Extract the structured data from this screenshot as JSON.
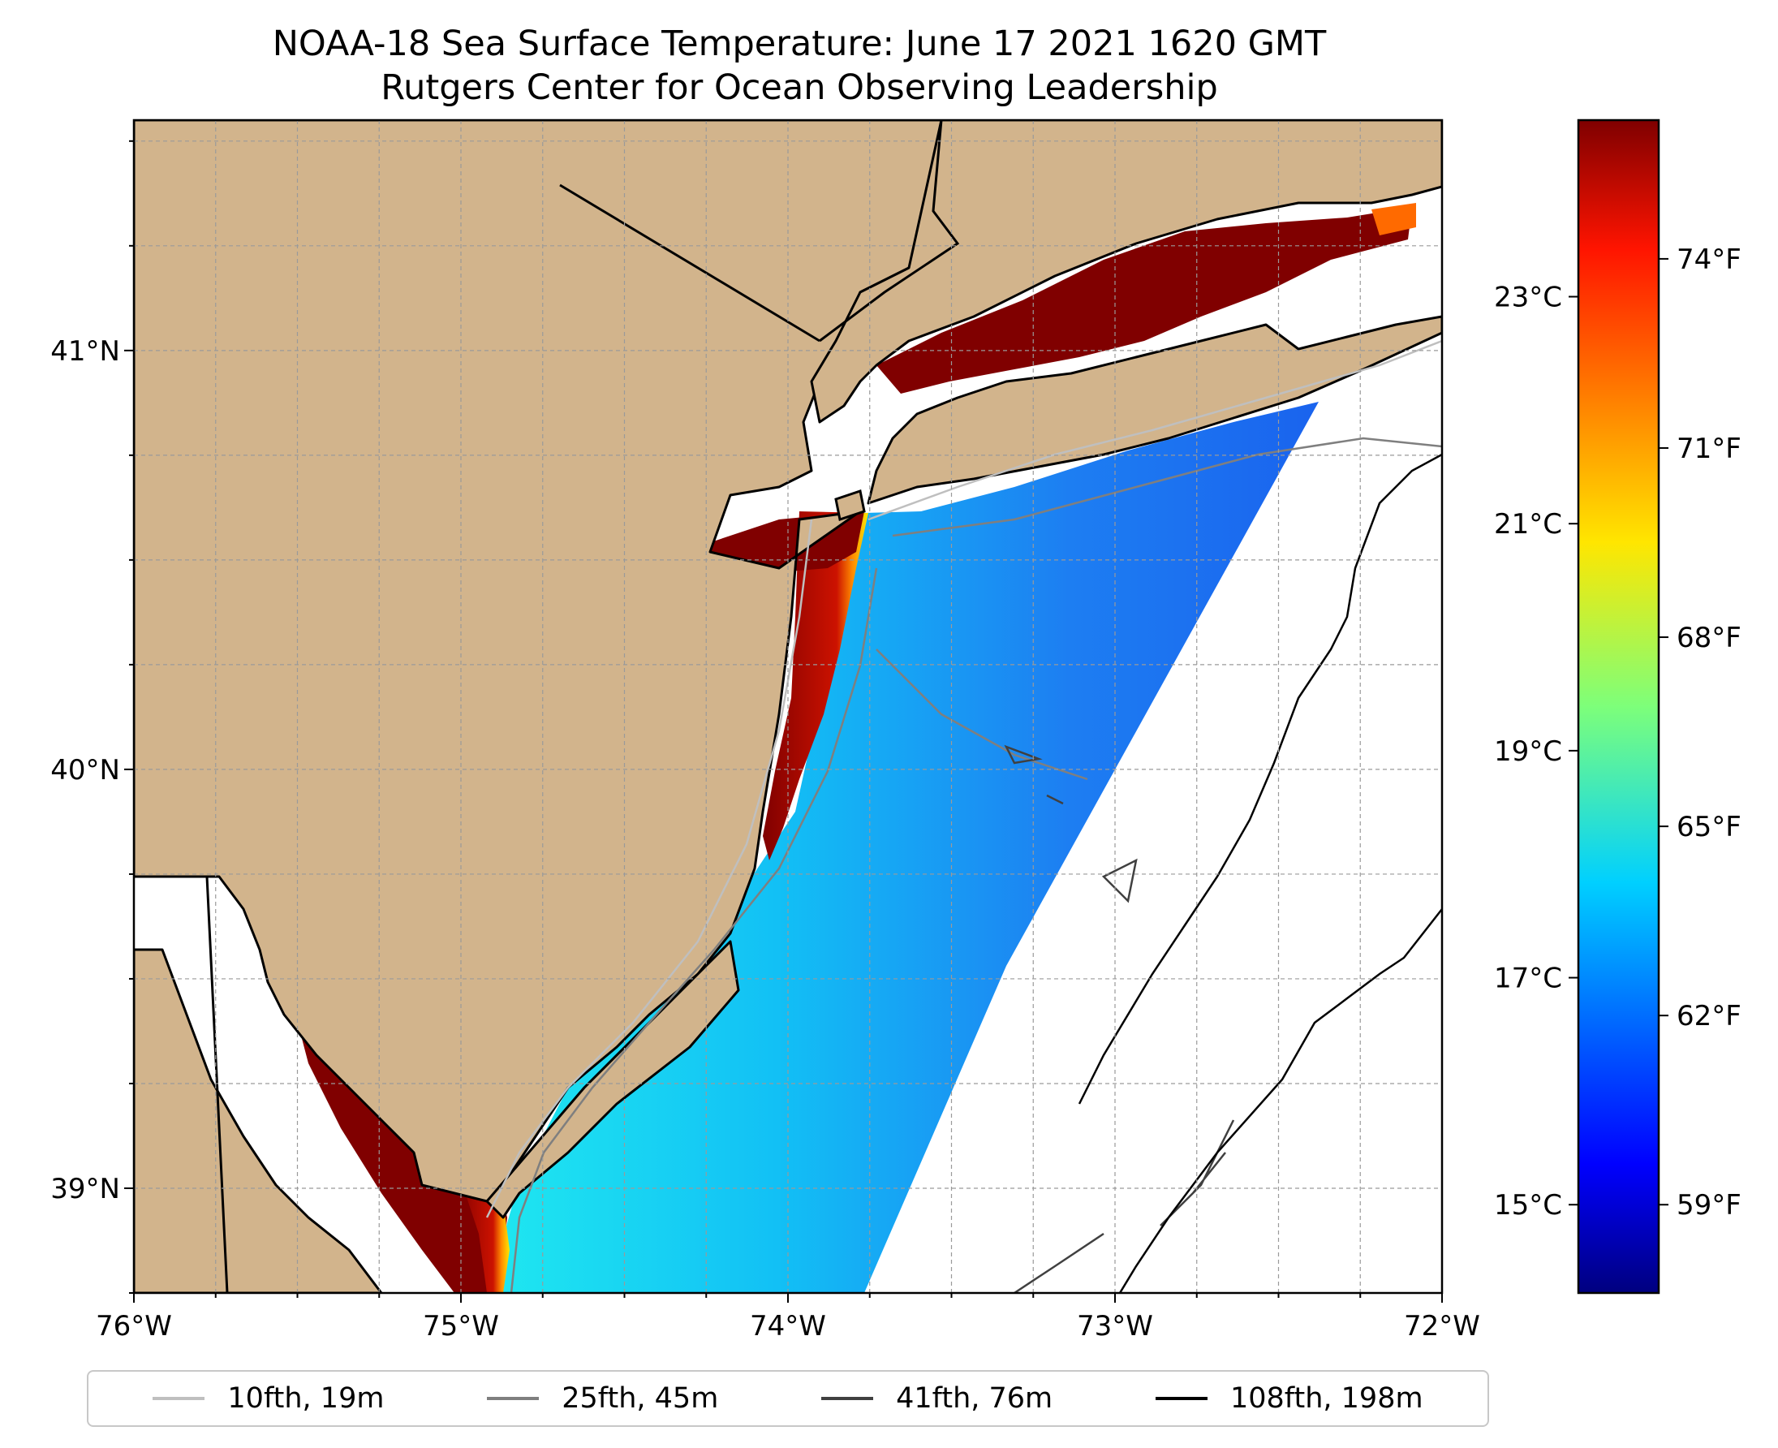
{
  "title": "NOAA-18 Sea Surface Temperature: June 17 2021 1620 GMT",
  "subtitle": "Rutgers Center for Ocean Observing Leadership",
  "map": {
    "lon_range": [
      -76,
      -72
    ],
    "lat_range": [
      38.75,
      41.55
    ],
    "lon_ticks": [
      "76°W",
      "75°W",
      "74°W",
      "73°W",
      "72°W"
    ],
    "lat_ticks": [
      "41°N",
      "40°N",
      "39°N"
    ],
    "grid": true,
    "land_color": "#d2b48c",
    "ocean_color": "#ffffff",
    "colormap": "jet"
  },
  "colorbar": {
    "celsius_ticks": [
      "23°C",
      "21°C",
      "19°C",
      "17°C",
      "15°C"
    ],
    "fahrenheit_ticks": [
      "74°F",
      "71°F",
      "68°F",
      "65°F",
      "62°F",
      "59°F"
    ],
    "range_f": [
      57.6,
      76.2
    ]
  },
  "legend": {
    "placement": "bottom",
    "items": [
      {
        "label": "10fth, 19m",
        "color": "#bfbfbf"
      },
      {
        "label": "25fth, 45m",
        "color": "#7f7f7f"
      },
      {
        "label": "41fth, 76m",
        "color": "#404040"
      },
      {
        "label": "108fth, 198m",
        "color": "#000000"
      }
    ]
  }
}
